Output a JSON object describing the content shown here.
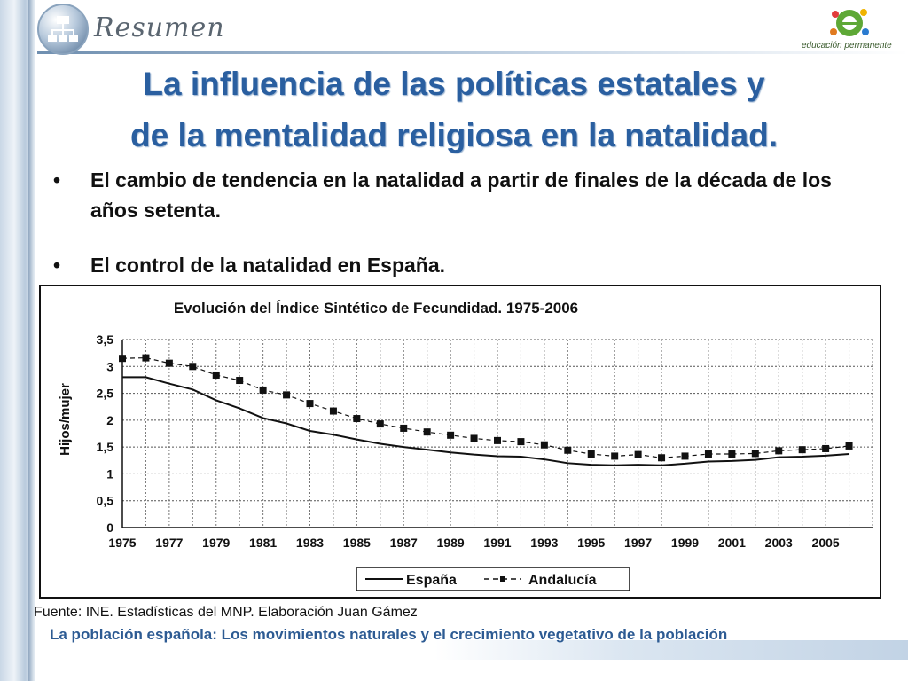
{
  "header": {
    "section_label": "Resumen",
    "logo_text": "educación permanente",
    "logo_icon": "hierarchy-icon"
  },
  "slide": {
    "title_line1": "La influencia de las políticas estatales y",
    "title_line2": "de la mentalidad religiosa en la natalidad.",
    "bullets": [
      "El cambio de tendencia en la natalidad a partir de finales de la década de los años setenta.",
      "El control de la natalidad en España."
    ],
    "source": "Fuente: INE. Estadísticas del MNP. Elaboración Juan Gámez",
    "footer": "La población española: Los movimientos naturales y el crecimiento vegetativo de la población"
  },
  "colors": {
    "title": "#2a5fa0",
    "footer": "#2d5b93"
  },
  "chart_data": {
    "type": "line",
    "title": "Evolución del Índice Sintético de Fecundidad. 1975-2006",
    "xlabel": "",
    "ylabel": "Hijos/mujer",
    "ylim": [
      0,
      3.5
    ],
    "yticks": [
      "0",
      "0,5",
      "1",
      "1,5",
      "2",
      "2,5",
      "3",
      "3,5"
    ],
    "xtick_labels": [
      "1975",
      "1977",
      "1979",
      "1981",
      "1983",
      "1985",
      "1987",
      "1989",
      "1991",
      "1993",
      "1995",
      "1997",
      "1999",
      "2001",
      "2003",
      "2005"
    ],
    "grid": true,
    "legend_position": "bottom",
    "x": [
      1975,
      1976,
      1977,
      1978,
      1979,
      1980,
      1981,
      1982,
      1983,
      1984,
      1985,
      1986,
      1987,
      1988,
      1989,
      1990,
      1991,
      1992,
      1993,
      1994,
      1995,
      1996,
      1997,
      1998,
      1999,
      2000,
      2001,
      2002,
      2003,
      2004,
      2005,
      2006
    ],
    "series": [
      {
        "name": "España",
        "style": "solid",
        "values": [
          2.8,
          2.8,
          2.68,
          2.57,
          2.37,
          2.22,
          2.04,
          1.94,
          1.8,
          1.73,
          1.64,
          1.56,
          1.5,
          1.45,
          1.4,
          1.36,
          1.33,
          1.32,
          1.27,
          1.2,
          1.17,
          1.16,
          1.17,
          1.16,
          1.19,
          1.23,
          1.24,
          1.26,
          1.31,
          1.32,
          1.34,
          1.37
        ]
      },
      {
        "name": "Andalucía",
        "style": "dashed-square",
        "values": [
          3.15,
          3.16,
          3.06,
          3.0,
          2.84,
          2.74,
          2.56,
          2.47,
          2.31,
          2.17,
          2.03,
          1.93,
          1.85,
          1.78,
          1.72,
          1.66,
          1.62,
          1.6,
          1.54,
          1.44,
          1.37,
          1.33,
          1.36,
          1.3,
          1.33,
          1.37,
          1.37,
          1.38,
          1.43,
          1.45,
          1.47,
          1.52
        ]
      }
    ]
  }
}
